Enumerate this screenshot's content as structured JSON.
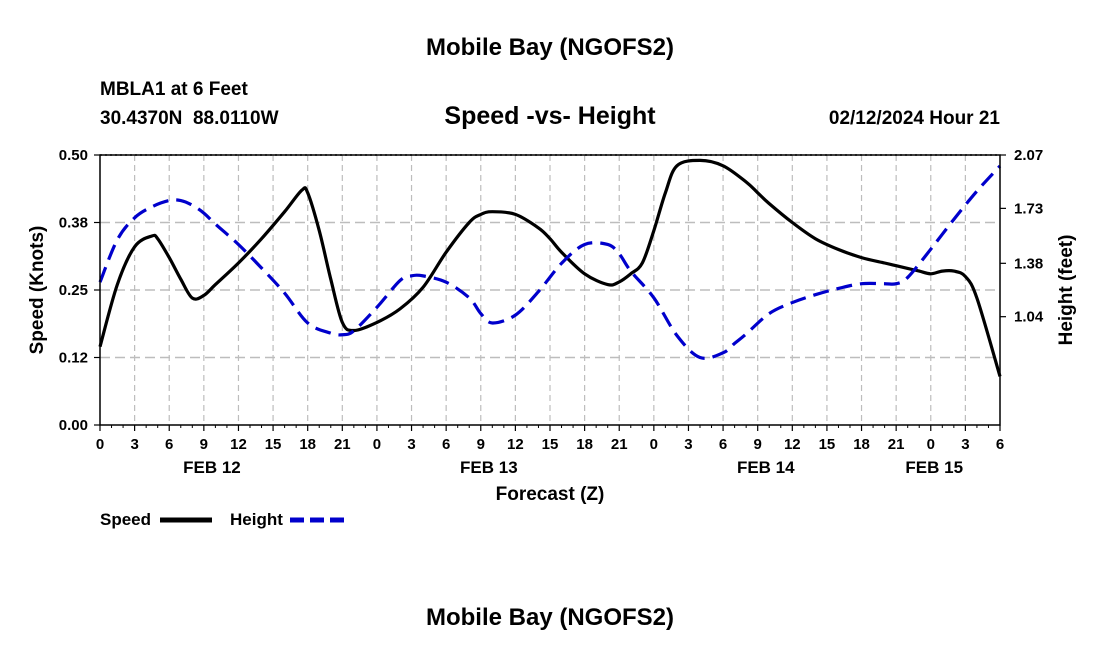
{
  "page": {
    "title": "Mobile Bay (NGOFS2)",
    "title_repeat": "Mobile Bay (NGOFS2)"
  },
  "station": {
    "name": "MBLA1 at 6 Feet",
    "coords": "30.4370N  88.0110W"
  },
  "forecast_stamp": "02/12/2024 Hour 21",
  "legend": {
    "speed": "Speed",
    "height": "Height"
  },
  "colors": {
    "speed": "#000000",
    "height": "#0000cc",
    "grid": "#bdbdbd"
  },
  "chart_data": {
    "type": "line",
    "title": "Speed -vs- Height",
    "xlabel": "Forecast (Z)",
    "ylabel": "Speed (Knots)",
    "y2label": "Height (feet)",
    "x_unit": "hours from 2024-02-12 00Z",
    "xlim": [
      0,
      78
    ],
    "x_tick_hours": [
      0,
      3,
      6,
      9,
      12,
      15,
      18,
      21,
      24,
      27,
      30,
      33,
      36,
      39,
      42,
      45,
      48,
      51,
      54,
      57,
      60,
      63,
      66,
      69,
      72,
      75,
      78
    ],
    "x_tick_labels": [
      "0",
      "3",
      "6",
      "9",
      "12",
      "15",
      "18",
      "21",
      "0",
      "3",
      "6",
      "9",
      "12",
      "15",
      "18",
      "21",
      "0",
      "3",
      "6",
      "9",
      "12",
      "15",
      "18",
      "21",
      "0",
      "3",
      "6"
    ],
    "date_labels": [
      {
        "label": "FEB 12",
        "hour": 9.7
      },
      {
        "label": "FEB 13",
        "hour": 33.7
      },
      {
        "label": "FEB 14",
        "hour": 57.7
      },
      {
        "label": "FEB 15",
        "hour": 72.3
      }
    ],
    "ylim": [
      0,
      0.5
    ],
    "y_ticks": [
      0.0,
      0.125,
      0.25,
      0.375,
      0.5
    ],
    "y_tick_labels": [
      "0.00",
      "0.12",
      "0.25",
      "0.38",
      "0.50"
    ],
    "y2lim": [
      0.35,
      2.07
    ],
    "y2_ticks": [
      1.04,
      1.38,
      1.73,
      2.07
    ],
    "y2_tick_labels": [
      "1.04",
      "1.38",
      "1.73",
      "2.07"
    ],
    "grid": true,
    "legend_position": "bottom-left",
    "series": [
      {
        "name": "Speed",
        "axis": "left",
        "style": "solid",
        "x": [
          0,
          1.5,
          3,
          4.5,
          5,
          6,
          7,
          8,
          9,
          10,
          12,
          14,
          16,
          17.5,
          18,
          19,
          20,
          21,
          22,
          24,
          26,
          28,
          30,
          32,
          33,
          34,
          36,
          38,
          39,
          40,
          42,
          44,
          45,
          46,
          47,
          48,
          49,
          50,
          52,
          54,
          56,
          57,
          58,
          60,
          62,
          64,
          66,
          68,
          69,
          70,
          71,
          72,
          73,
          74,
          75,
          76,
          78
        ],
        "y": [
          0.145,
          0.26,
          0.33,
          0.35,
          0.345,
          0.31,
          0.27,
          0.235,
          0.24,
          0.26,
          0.3,
          0.345,
          0.395,
          0.435,
          0.43,
          0.36,
          0.27,
          0.19,
          0.175,
          0.19,
          0.215,
          0.255,
          0.32,
          0.375,
          0.39,
          0.395,
          0.39,
          0.365,
          0.345,
          0.32,
          0.28,
          0.26,
          0.265,
          0.28,
          0.3,
          0.36,
          0.43,
          0.48,
          0.49,
          0.48,
          0.45,
          0.43,
          0.41,
          0.375,
          0.345,
          0.325,
          0.31,
          0.3,
          0.295,
          0.29,
          0.285,
          0.28,
          0.285,
          0.285,
          0.275,
          0.235,
          0.09
        ]
      },
      {
        "name": "Height",
        "axis": "right",
        "style": "dashed",
        "x": [
          0,
          1.5,
          3,
          4.5,
          6,
          7,
          8,
          9,
          10,
          12,
          14,
          16,
          18,
          20,
          21,
          22,
          24,
          26,
          27,
          28,
          30,
          32,
          33,
          34,
          36,
          38,
          40,
          42,
          44,
          45,
          46,
          48,
          50,
          52,
          54,
          55,
          56,
          58,
          60,
          62,
          64,
          66,
          68,
          69,
          70,
          72,
          74,
          76,
          78
        ],
        "y": [
          1.26,
          1.53,
          1.67,
          1.74,
          1.78,
          1.78,
          1.75,
          1.7,
          1.63,
          1.5,
          1.35,
          1.19,
          1.0,
          0.935,
          0.925,
          0.95,
          1.1,
          1.27,
          1.3,
          1.3,
          1.26,
          1.16,
          1.06,
          1.0,
          1.05,
          1.2,
          1.38,
          1.5,
          1.5,
          1.44,
          1.33,
          1.16,
          0.92,
          0.78,
          0.81,
          0.87,
          0.93,
          1.06,
          1.13,
          1.18,
          1.22,
          1.25,
          1.25,
          1.25,
          1.29,
          1.47,
          1.66,
          1.84,
          2.0
        ]
      }
    ]
  }
}
